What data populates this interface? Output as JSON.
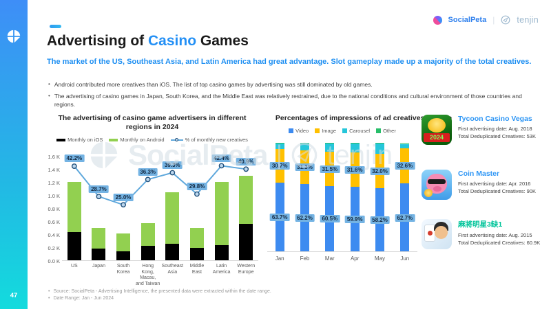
{
  "page": {
    "number": "47"
  },
  "brand": {
    "socialpeta": "SocialPeta",
    "separator": "|",
    "tenjin": "tenjin"
  },
  "watermark": {
    "socialpeta": "SocialPeta",
    "separator": "|",
    "tenjin": "tenjin"
  },
  "header": {
    "title_prefix": "Advertising of ",
    "title_highlight": "Casino",
    "title_suffix": " Games",
    "subtitle": "The market of the US, Southeast Asia, and Latin America had great advantage. Slot gameplay made up a majority of the total creatives.",
    "bullets": [
      "Android contributed more creatives than iOS. The list of top casino games by advertising was still dominated by old games.",
      "The advertising of casino games in Japan, South Korea, and the Middle East was relatively restrained, due to the national conditions and cultural environment of those countries and regions."
    ]
  },
  "colors": {
    "accent_blue": "#2490F5",
    "subtitle_blue": "#1E8FF2",
    "ios_black": "#000000",
    "android_green": "#92D050",
    "line_blue": "#5FA8DC",
    "data_label_bg": "#74B3E3",
    "video_blue": "#3D8BF0",
    "image_yellow": "#FFC000",
    "carousel_cyan": "#26C6DA",
    "other_green": "#27BE69",
    "strip_top": "#3E8EF7",
    "strip_bottom": "#13DBDD",
    "tenjin_gray": "#9DB8CE",
    "socialpeta_blue": "#2F80ED",
    "mahjong_title_green": "#00C49A"
  },
  "chart_data": [
    {
      "type": "bar",
      "stacked": true,
      "title": "The advertising of casino game advertisers in different regions in 2024",
      "categories": [
        "US",
        "Japan",
        "South Korea",
        "Hong Kong, Macau, and Taiwan",
        "Southeast Asia",
        "Middle East",
        "Latin America",
        "Western Europe"
      ],
      "series": [
        {
          "name": "Monthly on iOS",
          "color": "#000000",
          "values": [
            0.44,
            0.18,
            0.14,
            0.23,
            0.26,
            0.19,
            0.24,
            0.56
          ]
        },
        {
          "name": "Monthly on Android",
          "color": "#92D050",
          "values": [
            0.76,
            0.32,
            0.28,
            0.34,
            0.79,
            0.31,
            0.96,
            0.74
          ]
        }
      ],
      "line_series": {
        "name": "% of monthly new creatives",
        "color": "#5FA8DC",
        "values": [
          42.2,
          28.7,
          25.0,
          36.3,
          39.3,
          29.8,
          42.4,
          40.9
        ],
        "labels": [
          "42.2%",
          "28.7%",
          "25.0%",
          "36.3%",
          "39.3%",
          "29.8%",
          "42.4%",
          "40.9%"
        ],
        "axis_max": 46.5
      },
      "ylim": [
        0,
        1.6
      ],
      "yticks": [
        "0.0 K",
        "0.2 K",
        "0.4 K",
        "0.6 K",
        "0.8 K",
        "1.0 K",
        "1.2 K",
        "1.4 K",
        "1.6 K"
      ],
      "grid": false,
      "legend_position": "top"
    },
    {
      "type": "bar",
      "stacked": true,
      "percent": true,
      "title": "Percentages of impressions of ad creatives by type",
      "categories": [
        "Jan",
        "Feb",
        "Mar",
        "Apr",
        "May",
        "Jun"
      ],
      "series": [
        {
          "name": "Video",
          "color": "#3D8BF0",
          "values": [
            63.7,
            62.2,
            60.5,
            59.9,
            58.2,
            62.7
          ],
          "labels": [
            "63.7%",
            "62.2%",
            "60.5%",
            "59.9%",
            "58.2%",
            "62.7%"
          ]
        },
        {
          "name": "Image",
          "color": "#FFC000",
          "values": [
            30.7,
            31.3,
            31.5,
            31.6,
            32.0,
            32.6
          ],
          "labels": [
            "30.7%",
            "31.3%",
            "31.5%",
            "31.6%",
            "32.0%",
            "32.6%"
          ]
        },
        {
          "name": "Carousel",
          "color": "#26C6DA",
          "values": [
            5.0,
            5.8,
            7.3,
            7.8,
            9.1,
            3.9
          ]
        },
        {
          "name": "Other",
          "color": "#27BE69",
          "values": [
            0.6,
            0.7,
            0.7,
            0.7,
            0.7,
            0.8
          ]
        }
      ],
      "ylim": [
        0,
        100
      ],
      "grid": false,
      "legend_position": "top"
    }
  ],
  "games": [
    {
      "title": "Tycoon Casino Vegas",
      "title_color": "#2E96F5",
      "icon_badge": "2024",
      "first_ad": "First advertising date: Aug. 2018",
      "creatives": "Total Deduplicated Creatives: 53K"
    },
    {
      "title": "Coin Master",
      "title_color": "#2E96F5",
      "first_ad": "First advertising date: Apr. 2016",
      "creatives": "Total Deduplicated Creatives: 90K"
    },
    {
      "title": "麻將明星3缺1",
      "title_color": "#00C49A",
      "first_ad": "First advertising date: Aug. 2015",
      "creatives": "Total Deduplicated Creatives: 60.9K"
    }
  ],
  "footer": {
    "notes": [
      "Source: SocialPeta - Advertising Intelligence, the presented data were extracted within the date range.",
      "Date Range: Jan - Jun 2024"
    ]
  }
}
